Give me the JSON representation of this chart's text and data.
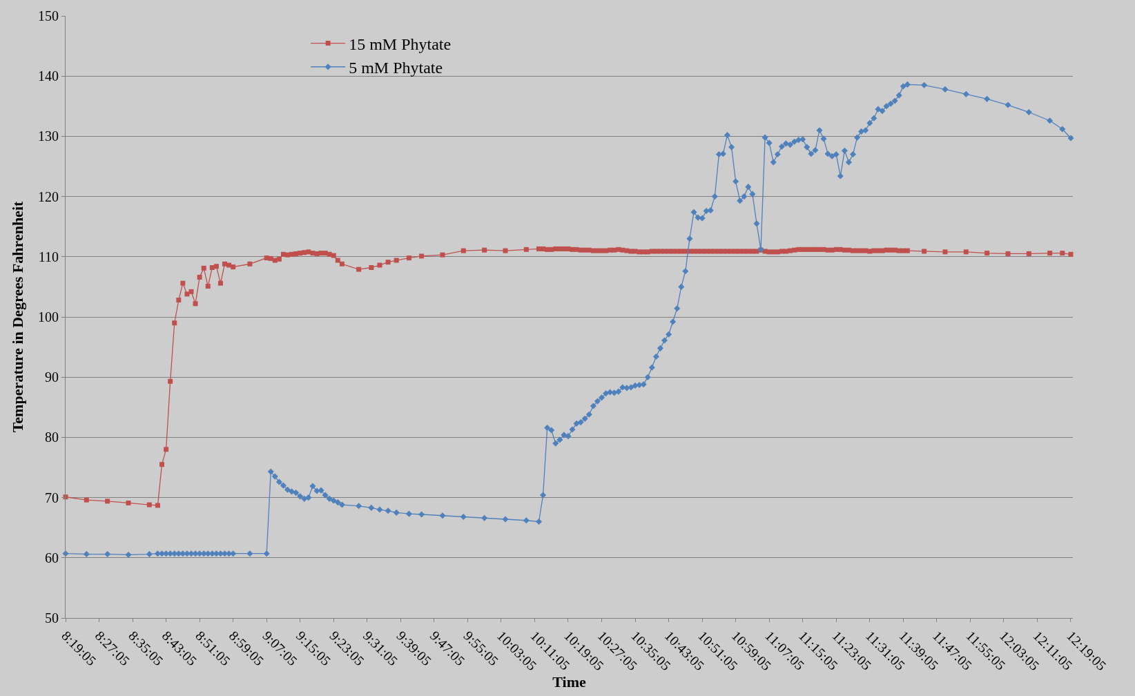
{
  "chart_data": {
    "type": "line",
    "xlabel": "Time",
    "ylabel": "Temperature in Degrees Fahrenheit",
    "x": [
      8.3181,
      8.4014,
      8.4847,
      8.5681,
      8.6514,
      8.6847,
      8.7014,
      8.7181,
      8.7347,
      8.7514,
      8.7681,
      8.7847,
      8.8014,
      8.8181,
      8.8347,
      8.8514,
      8.8681,
      8.8847,
      8.9014,
      8.9181,
      8.9347,
      8.9514,
      8.9681,
      8.9847,
      9.0514,
      9.1181,
      9.1347,
      9.1514,
      9.1681,
      9.1847,
      9.2014,
      9.2181,
      9.2347,
      9.2514,
      9.2681,
      9.2847,
      9.3014,
      9.3181,
      9.3347,
      9.3514,
      9.3681,
      9.3847,
      9.4014,
      9.4181,
      9.4847,
      9.5347,
      9.5681,
      9.6014,
      9.6347,
      9.6847,
      9.7347,
      9.8181,
      9.9014,
      9.9847,
      10.0681,
      10.1514,
      10.2014,
      10.2181,
      10.2347,
      10.2514,
      10.2681,
      10.2847,
      10.3014,
      10.3181,
      10.3347,
      10.3514,
      10.3681,
      10.3847,
      10.4014,
      10.4181,
      10.4347,
      10.4514,
      10.4681,
      10.4847,
      10.5014,
      10.5181,
      10.5347,
      10.5514,
      10.5681,
      10.5847,
      10.6014,
      10.6181,
      10.6347,
      10.6514,
      10.6681,
      10.6847,
      10.7014,
      10.7181,
      10.7347,
      10.7514,
      10.7681,
      10.7847,
      10.8014,
      10.8181,
      10.8347,
      10.8514,
      10.8681,
      10.8847,
      10.9014,
      10.9181,
      10.9347,
      10.9514,
      10.9681,
      10.9847,
      11.0014,
      11.0181,
      11.0347,
      11.0514,
      11.0681,
      11.0847,
      11.1014,
      11.1181,
      11.1347,
      11.1514,
      11.1681,
      11.1847,
      11.2014,
      11.2181,
      11.2347,
      11.2514,
      11.2681,
      11.2847,
      11.3014,
      11.3181,
      11.3347,
      11.3514,
      11.3681,
      11.3847,
      11.4014,
      11.4181,
      11.4347,
      11.4514,
      11.4681,
      11.4847,
      11.5014,
      11.5181,
      11.5347,
      11.5514,
      11.5681,
      11.5847,
      11.6014,
      11.6181,
      11.6347,
      11.6514,
      11.6681,
      11.7347,
      11.8181,
      11.9014,
      11.9847,
      12.0681,
      12.1514,
      12.2347,
      12.2847,
      12.3181
    ],
    "series": [
      {
        "name": "15 mM Phytate",
        "color": "#c0504d",
        "marker": "square",
        "values": [
          70.1,
          69.6,
          69.4,
          69.1,
          68.8,
          68.7,
          75.5,
          78,
          89.3,
          99,
          102.8,
          105.6,
          103.8,
          104.2,
          102.2,
          106.6,
          108.1,
          105.1,
          108.2,
          108.4,
          105.6,
          108.8,
          108.6,
          108.3,
          108.8,
          109.8,
          109.7,
          109.4,
          109.6,
          110.4,
          110.3,
          110.4,
          110.5,
          110.6,
          110.7,
          110.8,
          110.6,
          110.5,
          110.6,
          110.6,
          110.4,
          110.2,
          109.4,
          108.8,
          107.9,
          108.2,
          108.6,
          109.1,
          109.4,
          109.8,
          110.1,
          110.3,
          111,
          111.1,
          111,
          111.2,
          111.3,
          111.3,
          111.2,
          111.2,
          111.3,
          111.3,
          111.3,
          111.3,
          111.2,
          111.2,
          111.1,
          111.1,
          111.1,
          111,
          111,
          111,
          111,
          111.1,
          111.1,
          111.2,
          111.1,
          111,
          110.9,
          110.9,
          110.8,
          110.8,
          110.8,
          110.9,
          110.9,
          110.9,
          110.9,
          110.9,
          110.9,
          110.9,
          110.9,
          110.9,
          110.9,
          110.9,
          110.9,
          110.9,
          110.9,
          110.9,
          110.9,
          110.9,
          110.9,
          110.9,
          110.9,
          110.9,
          110.9,
          110.9,
          110.9,
          110.9,
          110.9,
          111.1,
          110.9,
          110.8,
          110.8,
          110.8,
          110.9,
          110.9,
          111,
          111.1,
          111.2,
          111.2,
          111.2,
          111.2,
          111.2,
          111.2,
          111.2,
          111.1,
          111.1,
          111.2,
          111.2,
          111.1,
          111.1,
          111,
          111,
          111,
          111,
          110.9,
          111,
          111,
          111,
          111.1,
          111.1,
          111.1,
          111,
          111,
          111,
          110.9,
          110.8,
          110.8,
          110.6,
          110.5,
          110.5,
          110.6,
          110.6,
          110.4
        ]
      },
      {
        "name": "5 mM Phytate",
        "color": "#4f81bd",
        "marker": "diamond",
        "values": [
          60.7,
          60.6,
          60.6,
          60.5,
          60.6,
          60.7,
          60.7,
          60.7,
          60.7,
          60.7,
          60.7,
          60.7,
          60.7,
          60.7,
          60.7,
          60.7,
          60.7,
          60.7,
          60.7,
          60.7,
          60.7,
          60.7,
          60.7,
          60.7,
          60.7,
          60.7,
          74.3,
          73.5,
          72.6,
          72,
          71.3,
          71,
          70.8,
          70.2,
          69.8,
          70,
          71.9,
          71.1,
          71.2,
          70.4,
          69.8,
          69.5,
          69.2,
          68.8,
          68.6,
          68.3,
          68,
          67.8,
          67.5,
          67.3,
          67.2,
          67,
          66.8,
          66.6,
          66.4,
          66.2,
          66,
          70.4,
          81.6,
          81.2,
          79,
          79.6,
          80.4,
          80.2,
          81.3,
          82.3,
          82.5,
          83.1,
          83.8,
          85.2,
          86,
          86.6,
          87.3,
          87.5,
          87.4,
          87.6,
          88.3,
          88.2,
          88.3,
          88.6,
          88.7,
          88.8,
          90,
          91.6,
          93.4,
          94.8,
          96.1,
          97.1,
          99.2,
          101.4,
          105,
          107.6,
          113,
          117.4,
          116.5,
          116.4,
          117.6,
          117.7,
          120,
          127,
          127.1,
          130.2,
          128.2,
          122.5,
          119.3,
          120,
          121.6,
          120.4,
          115.5,
          111.2,
          129.8,
          128.9,
          125.7,
          127,
          128.3,
          128.8,
          128.6,
          129.1,
          129.4,
          129.5,
          128.2,
          127.1,
          127.7,
          131,
          129.6,
          127.1,
          126.7,
          127,
          123.4,
          127.6,
          125.7,
          127,
          129.8,
          130.8,
          131,
          132.2,
          133,
          134.5,
          134.2,
          135,
          135.4,
          135.9,
          136.8,
          138.3,
          138.6,
          138.5,
          137.8,
          137,
          136.2,
          135.2,
          134,
          132.6,
          131.2,
          129.7
        ]
      }
    ],
    "xlim": [
      8.3181,
      12.3264
    ],
    "xticks": [
      {
        "value": 8.3181,
        "label": "8:19:05"
      },
      {
        "value": 8.4514,
        "label": "8:27:05"
      },
      {
        "value": 8.5847,
        "label": "8:35:05"
      },
      {
        "value": 8.7181,
        "label": "8:43:05"
      },
      {
        "value": 8.8514,
        "label": "8:51:05"
      },
      {
        "value": 8.9847,
        "label": "8:59:05"
      },
      {
        "value": 9.1181,
        "label": "9:07:05"
      },
      {
        "value": 9.2514,
        "label": "9:15:05"
      },
      {
        "value": 9.3847,
        "label": "9:23:05"
      },
      {
        "value": 9.5181,
        "label": "9:31:05"
      },
      {
        "value": 9.6514,
        "label": "9:39:05"
      },
      {
        "value": 9.7847,
        "label": "9:47:05"
      },
      {
        "value": 9.9181,
        "label": "9:55:05"
      },
      {
        "value": 10.0514,
        "label": "10:03:05"
      },
      {
        "value": 10.1847,
        "label": "10:11:05"
      },
      {
        "value": 10.3181,
        "label": "10:19:05"
      },
      {
        "value": 10.4514,
        "label": "10:27:05"
      },
      {
        "value": 10.5847,
        "label": "10:35:05"
      },
      {
        "value": 10.7181,
        "label": "10:43:05"
      },
      {
        "value": 10.8514,
        "label": "10:51:05"
      },
      {
        "value": 10.9847,
        "label": "10:59:05"
      },
      {
        "value": 11.1181,
        "label": "11:07:05"
      },
      {
        "value": 11.2514,
        "label": "11:15:05"
      },
      {
        "value": 11.3847,
        "label": "11:23:05"
      },
      {
        "value": 11.5181,
        "label": "11:31:05"
      },
      {
        "value": 11.6514,
        "label": "11:39:05"
      },
      {
        "value": 11.7847,
        "label": "11:47:05"
      },
      {
        "value": 11.9181,
        "label": "11:55:05"
      },
      {
        "value": 12.0514,
        "label": "12:03:05"
      },
      {
        "value": 12.1847,
        "label": "12:11:05"
      },
      {
        "value": 12.3181,
        "label": "12:19:05"
      }
    ],
    "ylim": [
      50,
      150
    ],
    "yticks": [
      50,
      60,
      70,
      80,
      90,
      100,
      110,
      120,
      130,
      140,
      150
    ],
    "grid": "y",
    "legend": "top left",
    "line_style": "solid"
  }
}
